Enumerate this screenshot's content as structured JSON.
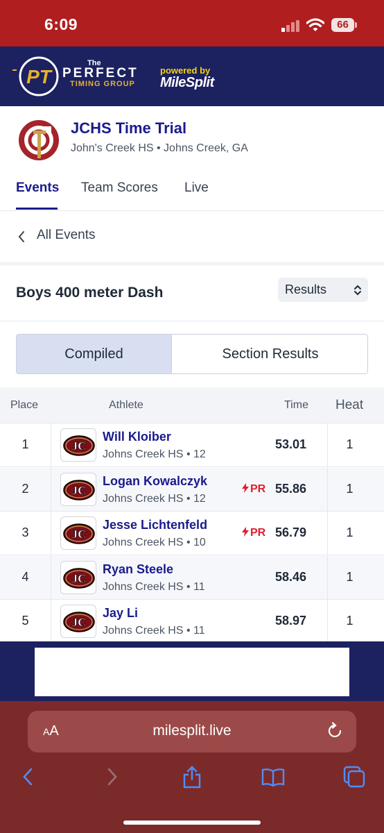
{
  "status_bar": {
    "time": "6:09",
    "battery": "66"
  },
  "banner": {
    "logo_letters": "PT",
    "brand_the": "The",
    "brand_name": "PERFECT",
    "brand_sub": "TIMING GROUP",
    "powered_label": "powered by",
    "powered_brand": "MileSplit"
  },
  "meet": {
    "title": "JCHS Time Trial",
    "subtitle": "John's Creek HS • Johns Creek, GA"
  },
  "tabs": [
    {
      "label": "Events",
      "active": true
    },
    {
      "label": "Team Scores",
      "active": false
    },
    {
      "label": "Live",
      "active": false
    }
  ],
  "back": {
    "label": "All Events"
  },
  "event": {
    "title": "Boys 400 meter Dash",
    "view_select": "Results"
  },
  "segment": {
    "left": "Compiled",
    "right": "Section Results",
    "selected": "Compiled"
  },
  "table": {
    "headers": {
      "place": "Place",
      "athlete": "Athlete",
      "time": "Time",
      "heat": "Heat"
    },
    "rows": [
      {
        "place": "1",
        "name": "Will Kloiber",
        "team": "Johns Creek HS • 12",
        "pr": "",
        "time": "53.01",
        "heat": "1"
      },
      {
        "place": "2",
        "name": "Logan Kowalczyk",
        "team": "Johns Creek HS • 12",
        "pr": "PR",
        "time": "55.86",
        "heat": "1"
      },
      {
        "place": "3",
        "name": "Jesse Lichtenfeld",
        "team": "Johns Creek HS • 10",
        "pr": "PR",
        "time": "56.79",
        "heat": "1"
      },
      {
        "place": "4",
        "name": "Ryan Steele",
        "team": "Johns Creek HS • 11",
        "pr": "",
        "time": "58.46",
        "heat": "1"
      },
      {
        "place": "5",
        "name": "Jay Li",
        "team": "Johns Creek HS • 11",
        "pr": "",
        "time": "58.97",
        "heat": "1"
      }
    ]
  },
  "safari": {
    "aa_label": "AA",
    "url": "milesplit.live"
  },
  "colors": {
    "accent": "#1a1b8c",
    "status_bar": "#b01e20",
    "banner": "#1c2160",
    "pr": "#e11d2e",
    "safari": "#7b2a2a"
  }
}
